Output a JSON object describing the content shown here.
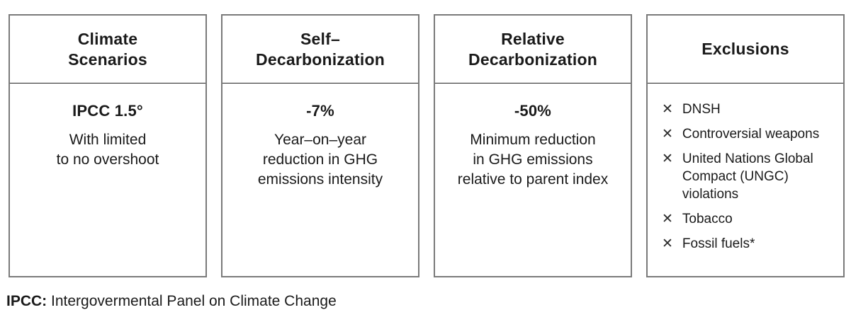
{
  "colors": {
    "background": "#ffffff",
    "box_border": "#7a7a7a",
    "header_divider": "#222222",
    "text": "#1a1a1a"
  },
  "icons": {
    "exclude": "✕"
  },
  "columns": [
    {
      "title": "Climate\nScenarios",
      "value": "IPCC 1.5°",
      "description": "With limited\nto no overshoot"
    },
    {
      "title": "Self–\nDecarbonization",
      "value": "-7%",
      "description": "Year–on–year\nreduction in GHG\nemissions intensity"
    },
    {
      "title": "Relative\nDecarbonization",
      "value": "-50%",
      "description": "Minimum reduction\nin GHG emissions\nrelative to parent index"
    },
    {
      "title": "Exclusions",
      "items": [
        "DNSH",
        "Controversial weapons",
        "United Nations Global Compact (UNGC) violations",
        "Tobacco",
        "Fossil fuels*"
      ]
    }
  ],
  "footnote": {
    "term": "IPCC:",
    "definition": "Intergovermental Panel on Climate Change"
  }
}
